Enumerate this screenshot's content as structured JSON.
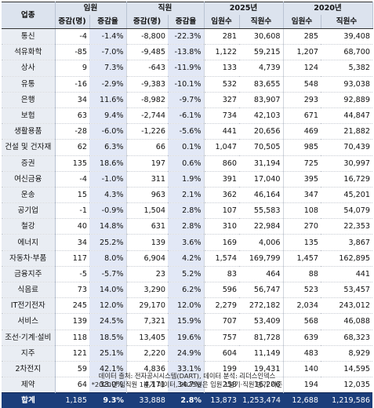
{
  "header": {
    "company": "업종",
    "exec": "임원",
    "staff": "직원",
    "y2025": "2025년",
    "y2020": "2020년",
    "change": "증감(명)",
    "rate": "증감율",
    "execCount": "임원수",
    "staffCount": "직원수"
  },
  "rows": [
    {
      "name": "통신",
      "e_chg": "-4",
      "e_rate": "-1.4%",
      "s_chg": "-8,800",
      "s_rate": "-22.3%",
      "e25": "281",
      "s25": "30,608",
      "e20": "285",
      "s20": "39,408"
    },
    {
      "name": "석유화학",
      "e_chg": "-85",
      "e_rate": "-7.0%",
      "s_chg": "-9,485",
      "s_rate": "-13.8%",
      "e25": "1,122",
      "s25": "59,215",
      "e20": "1,207",
      "s20": "68,700"
    },
    {
      "name": "상사",
      "e_chg": "9",
      "e_rate": "7.3%",
      "s_chg": "-643",
      "s_rate": "-11.9%",
      "e25": "133",
      "s25": "4,739",
      "e20": "124",
      "s20": "5,382"
    },
    {
      "name": "유통",
      "e_chg": "-16",
      "e_rate": "-2.9%",
      "s_chg": "-9,383",
      "s_rate": "-10.1%",
      "e25": "532",
      "s25": "83,655",
      "e20": "548",
      "s20": "93,038"
    },
    {
      "name": "은행",
      "e_chg": "34",
      "e_rate": "11.6%",
      "s_chg": "-8,982",
      "s_rate": "-9.7%",
      "e25": "327",
      "s25": "83,907",
      "e20": "293",
      "s20": "92,889"
    },
    {
      "name": "보험",
      "e_chg": "63",
      "e_rate": "9.4%",
      "s_chg": "-2,744",
      "s_rate": "-6.1%",
      "e25": "734",
      "s25": "42,103",
      "e20": "671",
      "s20": "44,847"
    },
    {
      "name": "생활용품",
      "e_chg": "-28",
      "e_rate": "-6.0%",
      "s_chg": "-1,226",
      "s_rate": "-5.6%",
      "e25": "441",
      "s25": "20,656",
      "e20": "469",
      "s20": "21,882"
    },
    {
      "name": "건설 및 건자재",
      "e_chg": "62",
      "e_rate": "6.3%",
      "s_chg": "66",
      "s_rate": "0.1%",
      "e25": "1,047",
      "s25": "70,505",
      "e20": "985",
      "s20": "70,439"
    },
    {
      "name": "증권",
      "e_chg": "135",
      "e_rate": "18.6%",
      "s_chg": "197",
      "s_rate": "0.6%",
      "e25": "860",
      "s25": "31,194",
      "e20": "725",
      "s20": "30,997"
    },
    {
      "name": "여신금융",
      "e_chg": "-4",
      "e_rate": "-1.0%",
      "s_chg": "311",
      "s_rate": "1.9%",
      "e25": "391",
      "s25": "17,040",
      "e20": "395",
      "s20": "16,729"
    },
    {
      "name": "운송",
      "e_chg": "15",
      "e_rate": "4.3%",
      "s_chg": "963",
      "s_rate": "2.1%",
      "e25": "362",
      "s25": "46,164",
      "e20": "347",
      "s20": "45,201"
    },
    {
      "name": "공기업",
      "e_chg": "-1",
      "e_rate": "-0.9%",
      "s_chg": "1,504",
      "s_rate": "2.8%",
      "e25": "107",
      "s25": "55,583",
      "e20": "108",
      "s20": "54,079"
    },
    {
      "name": "철강",
      "e_chg": "40",
      "e_rate": "14.8%",
      "s_chg": "631",
      "s_rate": "2.8%",
      "e25": "310",
      "s25": "22,984",
      "e20": "270",
      "s20": "22,353"
    },
    {
      "name": "에너지",
      "e_chg": "34",
      "e_rate": "25.2%",
      "s_chg": "139",
      "s_rate": "3.6%",
      "e25": "169",
      "s25": "4,006",
      "e20": "135",
      "s20": "3,867"
    },
    {
      "name": "자동차·부품",
      "e_chg": "117",
      "e_rate": "8.0%",
      "s_chg": "6,904",
      "s_rate": "4.2%",
      "e25": "1,574",
      "s25": "169,799",
      "e20": "1,457",
      "s20": "162,895"
    },
    {
      "name": "금융지주",
      "e_chg": "-5",
      "e_rate": "-5.7%",
      "s_chg": "23",
      "s_rate": "5.2%",
      "e25": "83",
      "s25": "464",
      "e20": "88",
      "s20": "441"
    },
    {
      "name": "식음료",
      "e_chg": "73",
      "e_rate": "14.0%",
      "s_chg": "3,290",
      "s_rate": "6.2%",
      "e25": "596",
      "s25": "56,747",
      "e20": "523",
      "s20": "53,457"
    },
    {
      "name": "IT전기전자",
      "e_chg": "245",
      "e_rate": "12.0%",
      "s_chg": "29,170",
      "s_rate": "12.0%",
      "e25": "2,279",
      "s25": "272,182",
      "e20": "2,034",
      "s20": "243,012"
    },
    {
      "name": "서비스",
      "e_chg": "139",
      "e_rate": "24.5%",
      "s_chg": "7,321",
      "s_rate": "15.9%",
      "e25": "707",
      "s25": "53,409",
      "e20": "568",
      "s20": "46,088"
    },
    {
      "name": "조선·기계·설비",
      "e_chg": "118",
      "e_rate": "18.5%",
      "s_chg": "13,405",
      "s_rate": "19.6%",
      "e25": "757",
      "s25": "81,728",
      "e20": "639",
      "s20": "68,323"
    },
    {
      "name": "지주",
      "e_chg": "121",
      "e_rate": "25.1%",
      "s_chg": "2,220",
      "s_rate": "24.9%",
      "e25": "604",
      "s25": "11,149",
      "e20": "483",
      "s20": "8,929"
    },
    {
      "name": "2차전지",
      "e_chg": "59",
      "e_rate": "42.1%",
      "s_chg": "4,836",
      "s_rate": "33.1%",
      "e25": "199",
      "s25": "19,431",
      "e20": "140",
      "s20": "14,595"
    },
    {
      "name": "제약",
      "e_chg": "64",
      "e_rate": "33.0%",
      "s_chg": "4,171",
      "s_rate": "34.7%",
      "e25": "258",
      "s25": "16,206",
      "e20": "194",
      "s20": "12,035"
    }
  ],
  "total": {
    "name": "합계",
    "e_chg": "1,185",
    "e_rate": "9.3%",
    "s_chg": "33,888",
    "s_rate": "2.8%",
    "e25": "13,873",
    "s25": "1,253,474",
    "e20": "12,688",
    "s20": "1,219,586"
  },
  "notes": {
    "line1": "데이터 출처: 전자공시시스템(DART), 데이터 분석: 리더스인덱스",
    "line2": "*2020년 임직원 1분기 데이터, 2025년은 임원 1분기·직원 반기 기준"
  },
  "colors": {
    "header_bg": "#dce3ee",
    "highlight": "#e2e8f6",
    "total_bg": "#1c3e7b"
  }
}
